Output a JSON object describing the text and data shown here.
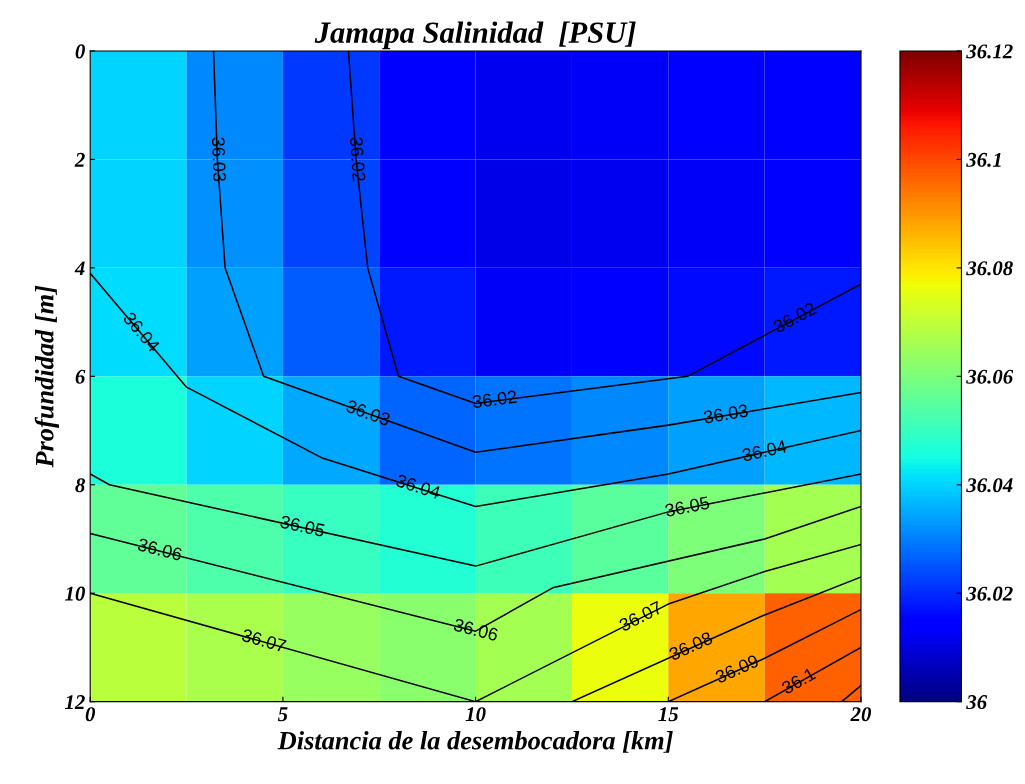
{
  "chart_data": {
    "type": "heatmap",
    "title": "Jamapa Salinidad  [PSU]",
    "xlabel": "Distancia de la desembocadora [km]",
    "ylabel": "Profundidad [m]",
    "x": [
      1.25,
      3.75,
      6.25,
      8.75,
      11.25,
      13.75,
      16.25,
      18.75
    ],
    "y": [
      1,
      3,
      5,
      7,
      9,
      11
    ],
    "cells": [
      [
        36.04,
        36.031,
        36.022,
        36.015,
        36.012,
        36.013,
        36.014,
        36.015
      ],
      [
        36.04,
        36.032,
        36.023,
        36.015,
        36.011,
        36.012,
        36.013,
        36.014
      ],
      [
        36.041,
        36.034,
        36.026,
        36.018,
        36.013,
        36.014,
        36.016,
        36.018
      ],
      [
        36.046,
        36.04,
        36.035,
        36.027,
        36.029,
        36.031,
        36.034,
        36.037
      ],
      [
        36.056,
        36.053,
        36.05,
        36.047,
        36.051,
        36.055,
        36.06,
        36.066
      ],
      [
        36.069,
        36.067,
        36.064,
        36.062,
        36.066,
        36.076,
        36.088,
        36.097
      ]
    ],
    "series": [
      {
        "type": "line",
        "color": "#000000",
        "x": [
          6.7,
          6.9,
          7.2,
          8,
          10,
          15.5,
          20
        ],
        "values": [
          0,
          2,
          4,
          6,
          6.5,
          6,
          4.3
        ]
      },
      {
        "type": "line",
        "color": "#000000",
        "x": [
          3.2,
          3.3,
          3.5,
          4.5,
          10,
          15,
          20
        ],
        "values": [
          0,
          2,
          4,
          6,
          7.4,
          6.9,
          6.3
        ]
      },
      {
        "type": "line",
        "color": "#000000",
        "x": [
          0,
          2.5,
          6,
          10,
          15,
          20
        ],
        "values": [
          4.1,
          6.2,
          7.5,
          8.4,
          7.8,
          7.0
        ]
      },
      {
        "type": "line",
        "color": "#000000",
        "x": [
          0,
          0.5,
          10,
          15,
          20
        ],
        "values": [
          7.8,
          8,
          9.5,
          8.5,
          7.8
        ]
      },
      {
        "type": "line",
        "color": "#000000",
        "x": [
          0,
          10,
          12,
          17.5,
          20
        ],
        "values": [
          8.9,
          10.7,
          9.9,
          9,
          8.4
        ]
      },
      {
        "type": "line",
        "color": "#000000",
        "x": [
          0,
          10,
          15,
          17.5,
          20
        ],
        "values": [
          10,
          12,
          10.2,
          9.6,
          9.1
        ]
      },
      {
        "type": "line",
        "color": "#000000",
        "x": [
          12.5,
          17.5,
          20
        ],
        "values": [
          12,
          10.4,
          9.7
        ]
      },
      {
        "type": "line",
        "color": "#000000",
        "x": [
          15,
          17.5,
          20
        ],
        "values": [
          12,
          11.2,
          10.3
        ]
      },
      {
        "type": "line",
        "color": "#000000",
        "x": [
          17.5,
          20
        ],
        "values": [
          12,
          11
        ]
      },
      {
        "type": "line",
        "color": "#000000",
        "x": [
          19.5,
          20
        ],
        "values": [
          12,
          11.7
        ]
      }
    ],
    "annotations": [
      {
        "text": "36.02",
        "x": 6.9,
        "y": 2.0
      },
      {
        "text": "36.03",
        "x": 3.3,
        "y": 2.0
      },
      {
        "text": "36.04",
        "x": 1.3,
        "y": 5.2
      },
      {
        "text": "36.03",
        "x": 7.2,
        "y": 6.7
      },
      {
        "text": "36.02",
        "x": 10.5,
        "y": 6.45
      },
      {
        "text": "36.04",
        "x": 8.5,
        "y": 8.06
      },
      {
        "text": "36.05",
        "x": 5.5,
        "y": 8.79
      },
      {
        "text": "36.06",
        "x": 1.8,
        "y": 9.22
      },
      {
        "text": "36.07",
        "x": 4.5,
        "y": 10.9
      },
      {
        "text": "36.02",
        "x": 18.3,
        "y": 4.94
      },
      {
        "text": "36.03",
        "x": 16.5,
        "y": 6.72
      },
      {
        "text": "36.04",
        "x": 17.5,
        "y": 7.4
      },
      {
        "text": "36.05",
        "x": 15.5,
        "y": 8.43
      },
      {
        "text": "36.06",
        "x": 10,
        "y": 10.7
      },
      {
        "text": "36.07",
        "x": 14.3,
        "y": 10.45
      },
      {
        "text": "36.08",
        "x": 15.6,
        "y": 11.0
      },
      {
        "text": "36.09",
        "x": 16.8,
        "y": 11.42
      },
      {
        "text": "36.1",
        "x": 18.4,
        "y": 11.64
      }
    ],
    "xlim": [
      0,
      20
    ],
    "xticks": [
      0,
      5,
      10,
      15,
      20
    ],
    "ylim": [
      12,
      0
    ],
    "yticks": [
      0,
      2,
      4,
      6,
      8,
      10,
      12
    ],
    "clim": [
      36,
      36.12
    ],
    "cticks": [
      36,
      36.02,
      36.04,
      36.06,
      36.08,
      36.1,
      36.12
    ]
  }
}
